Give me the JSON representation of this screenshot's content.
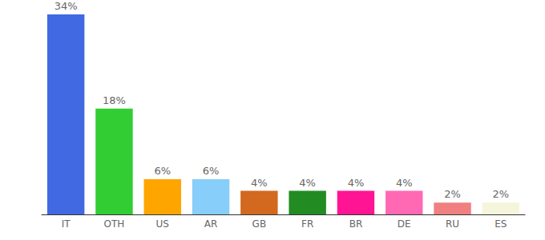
{
  "chart_data": {
    "type": "bar",
    "categories": [
      "IT",
      "OTH",
      "US",
      "AR",
      "GB",
      "FR",
      "BR",
      "DE",
      "RU",
      "ES"
    ],
    "values": [
      34,
      18,
      6,
      6,
      4,
      4,
      4,
      4,
      2,
      2
    ],
    "value_labels": [
      "34%",
      "18%",
      "6%",
      "6%",
      "4%",
      "4%",
      "4%",
      "4%",
      "2%",
      "2%"
    ],
    "colors": [
      "#4169e1",
      "#32cd32",
      "#ffa500",
      "#87cefa",
      "#d2691e",
      "#228b22",
      "#ff1493",
      "#ff69b4",
      "#f08080",
      "#f5f5dc"
    ],
    "data_labels": true,
    "tick_labels": "x",
    "grid": false
  }
}
